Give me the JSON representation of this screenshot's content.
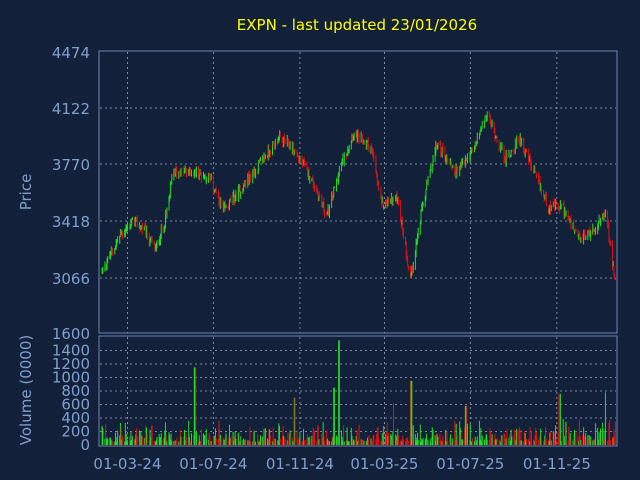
{
  "chart_data": {
    "type": "candlestick",
    "title": "EXPN - last updated 23/01/2026",
    "price_panel": {
      "ylabel": "Price",
      "ylim": [
        1600,
        4474
      ],
      "y_ticks": [
        "4474",
        "4122",
        "3770",
        "3418",
        "3066",
        "1600"
      ],
      "grid": true
    },
    "volume_panel": {
      "ylabel": "Volume (0000)",
      "ylim": [
        0,
        1600
      ],
      "y_ticks": [
        "1400",
        "1200",
        "1000",
        "800",
        "600",
        "400",
        "200",
        "0"
      ],
      "grid": true
    },
    "x_ticks": [
      "01-03-24",
      "01-07-24",
      "01-11-24",
      "01-03-25",
      "01-07-25",
      "01-11-25"
    ],
    "price_path": [
      {
        "date": "2024-01-25",
        "price": 3110
      },
      {
        "date": "2024-02-20",
        "price": 3330
      },
      {
        "date": "2024-03-10",
        "price": 3420
      },
      {
        "date": "2024-03-25",
        "price": 3360
      },
      {
        "date": "2024-04-10",
        "price": 3240
      },
      {
        "date": "2024-04-25",
        "price": 3450
      },
      {
        "date": "2024-05-05",
        "price": 3720
      },
      {
        "date": "2024-06-01",
        "price": 3720
      },
      {
        "date": "2024-06-25",
        "price": 3690
      },
      {
        "date": "2024-07-15",
        "price": 3480
      },
      {
        "date": "2024-08-05",
        "price": 3590
      },
      {
        "date": "2024-09-10",
        "price": 3800
      },
      {
        "date": "2024-10-01",
        "price": 3930
      },
      {
        "date": "2024-10-20",
        "price": 3880
      },
      {
        "date": "2024-11-15",
        "price": 3700
      },
      {
        "date": "2024-12-10",
        "price": 3450
      },
      {
        "date": "2024-12-25",
        "price": 3700
      },
      {
        "date": "2025-01-15",
        "price": 3960
      },
      {
        "date": "2025-02-10",
        "price": 3880
      },
      {
        "date": "2025-02-25",
        "price": 3520
      },
      {
        "date": "2025-03-20",
        "price": 3560
      },
      {
        "date": "2025-04-07",
        "price": 3060
      },
      {
        "date": "2025-04-25",
        "price": 3530
      },
      {
        "date": "2025-05-15",
        "price": 3900
      },
      {
        "date": "2025-06-10",
        "price": 3720
      },
      {
        "date": "2025-07-05",
        "price": 3850
      },
      {
        "date": "2025-07-25",
        "price": 4080
      },
      {
        "date": "2025-08-20",
        "price": 3800
      },
      {
        "date": "2025-09-10",
        "price": 3930
      },
      {
        "date": "2025-10-01",
        "price": 3700
      },
      {
        "date": "2025-10-20",
        "price": 3510
      },
      {
        "date": "2025-11-10",
        "price": 3500
      },
      {
        "date": "2025-12-01",
        "price": 3300
      },
      {
        "date": "2025-12-20",
        "price": 3350
      },
      {
        "date": "2026-01-10",
        "price": 3470
      },
      {
        "date": "2026-01-23",
        "price": 3010
      }
    ],
    "volume_spikes": [
      {
        "date": "2024-06-05",
        "volume": 1150
      },
      {
        "date": "2024-10-25",
        "volume": 700
      },
      {
        "date": "2024-12-20",
        "volume": 850
      },
      {
        "date": "2024-12-27",
        "volume": 1550
      },
      {
        "date": "2025-03-15",
        "volume": 620
      },
      {
        "date": "2025-04-08",
        "volume": 950
      },
      {
        "date": "2025-06-25",
        "volume": 580
      },
      {
        "date": "2025-11-05",
        "volume": 760
      },
      {
        "date": "2026-01-10",
        "volume": 780
      }
    ],
    "base_volume_range": [
      50,
      400
    ],
    "colors": {
      "up": "#22dd22",
      "down": "#dd1111",
      "title": "#ffff00",
      "axis_text": "#7f9fcf",
      "grid": "#9aa6bb",
      "frame": "#6c83b0",
      "background": "#13203a"
    }
  }
}
